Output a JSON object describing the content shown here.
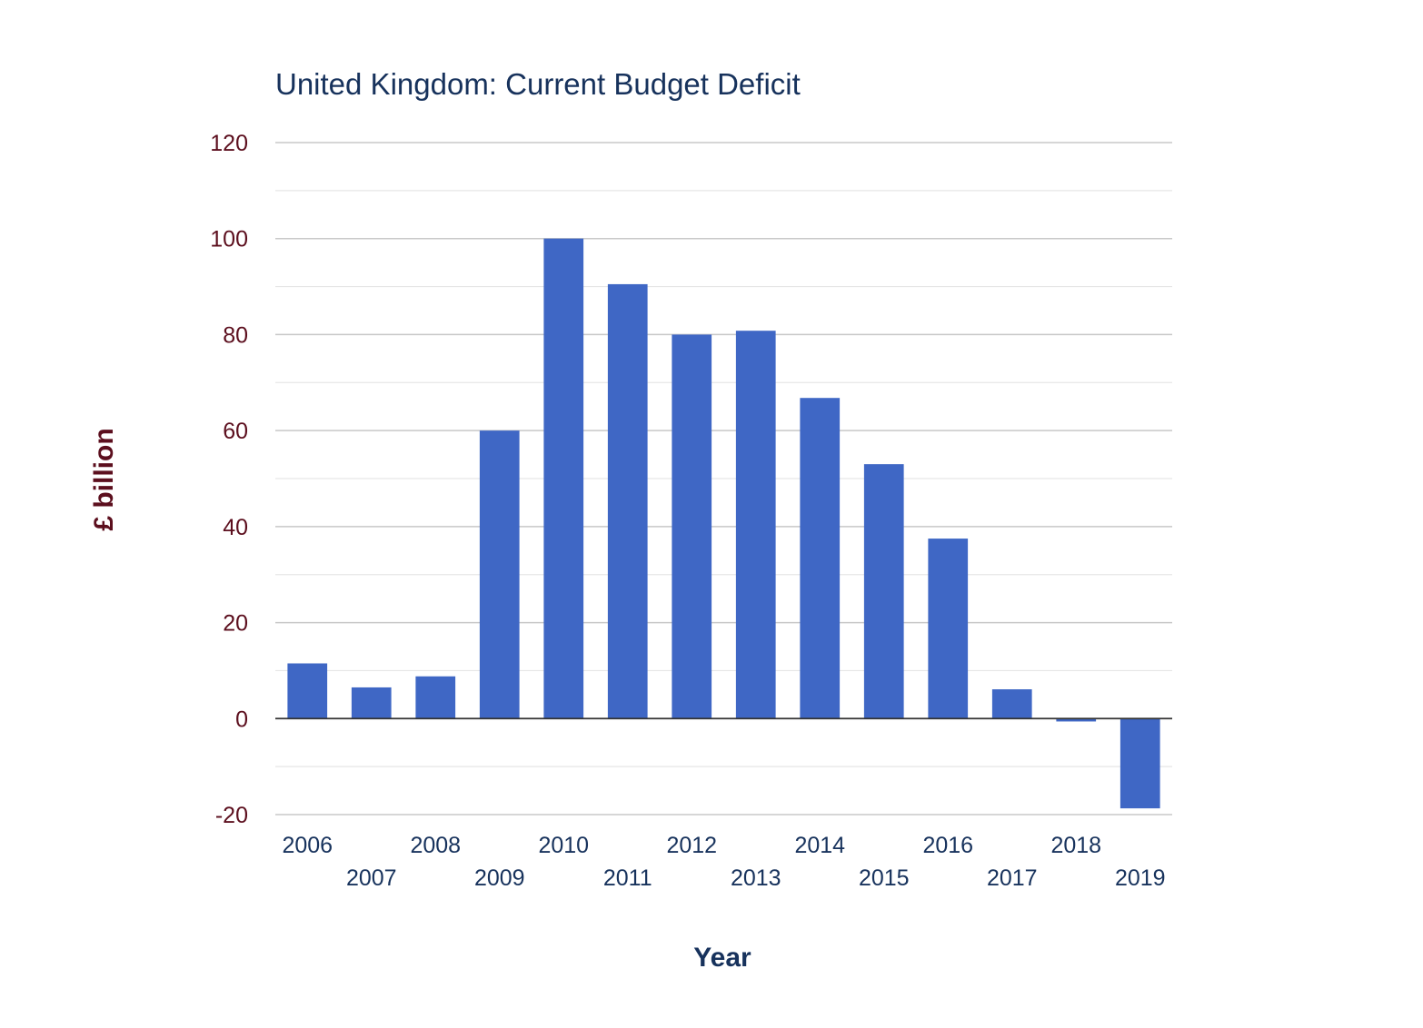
{
  "chart_data": {
    "type": "bar",
    "title": "United Kingdom: Current Budget Deficit",
    "xlabel": "Year",
    "ylabel": "£ billion",
    "categories": [
      "2006",
      "2007",
      "2008",
      "2009",
      "2010",
      "2011",
      "2012",
      "2013",
      "2014",
      "2015",
      "2016",
      "2017",
      "2018",
      "2019"
    ],
    "values": [
      11.5,
      6.5,
      8.8,
      60,
      100,
      90.5,
      80,
      80.8,
      66.8,
      53,
      37.5,
      6.1,
      -0.6,
      -18.7
    ],
    "ylim": [
      -20,
      120
    ],
    "yticks": [
      "-20",
      "0",
      "20",
      "40",
      "60",
      "80",
      "100",
      "120"
    ],
    "grid": true,
    "legend": "none",
    "bar_color": "#3f67c5"
  }
}
